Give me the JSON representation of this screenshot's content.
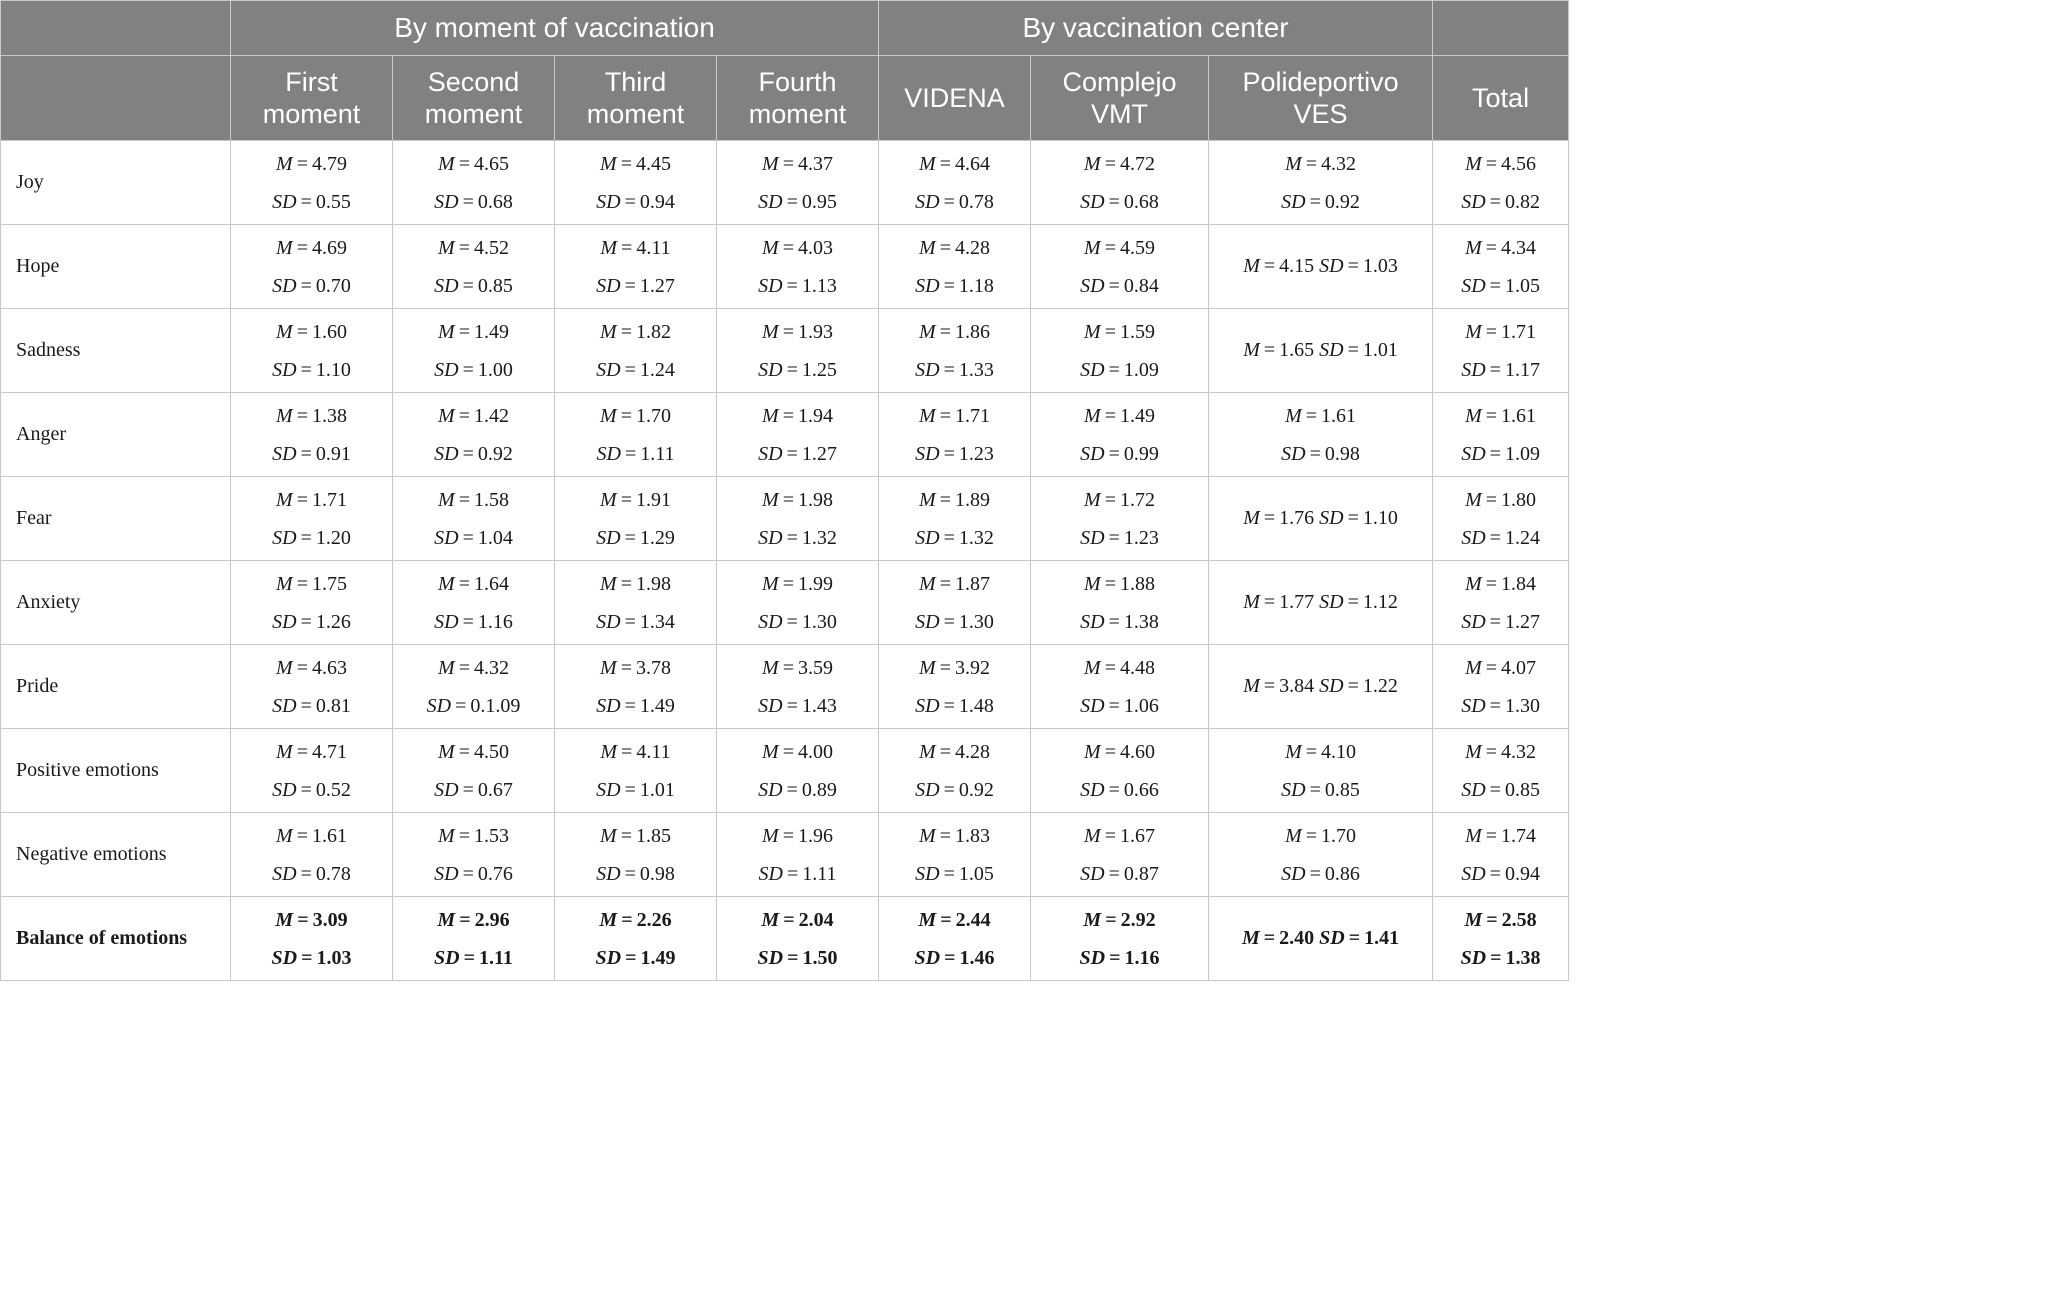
{
  "table": {
    "groups": [
      {
        "label": "",
        "span": 1
      },
      {
        "label": "By moment of vaccination",
        "span": 4
      },
      {
        "label": "By vaccination center",
        "span": 3
      },
      {
        "label": "",
        "span": 1
      }
    ],
    "columns": [
      [],
      [
        "First",
        "moment"
      ],
      [
        "Second",
        "moment"
      ],
      [
        "Third",
        "moment"
      ],
      [
        "Fourth",
        "moment"
      ],
      [
        "VIDENA"
      ],
      [
        "Complejo",
        "VMT"
      ],
      [
        "Polideportivo",
        "VES"
      ],
      [
        "Total"
      ]
    ],
    "rows": [
      {
        "label": "Joy",
        "bold": false,
        "cells": [
          [
            "4.79",
            "0.55"
          ],
          [
            "4.65",
            "0.68"
          ],
          [
            "4.45",
            "0.94"
          ],
          [
            "4.37",
            "0.95"
          ],
          [
            "4.64",
            "0.78"
          ],
          [
            "4.72",
            "0.68"
          ],
          [
            "4.32",
            "0.92"
          ],
          [
            "4.56",
            "0.82"
          ]
        ],
        "inline": [
          false,
          false,
          false,
          false,
          false,
          false,
          false,
          false
        ]
      },
      {
        "label": "Hope",
        "bold": false,
        "cells": [
          [
            "4.69",
            "0.70"
          ],
          [
            "4.52",
            "0.85"
          ],
          [
            "4.11",
            "1.27"
          ],
          [
            "4.03",
            "1.13"
          ],
          [
            "4.28",
            "1.18"
          ],
          [
            "4.59",
            "0.84"
          ],
          [
            "4.15",
            "1.03"
          ],
          [
            "4.34",
            "1.05"
          ]
        ],
        "inline": [
          false,
          false,
          false,
          false,
          false,
          false,
          true,
          false
        ]
      },
      {
        "label": "Sadness",
        "bold": false,
        "cells": [
          [
            "1.60",
            "1.10"
          ],
          [
            "1.49",
            "1.00"
          ],
          [
            "1.82",
            "1.24"
          ],
          [
            "1.93",
            "1.25"
          ],
          [
            "1.86",
            "1.33"
          ],
          [
            "1.59",
            "1.09"
          ],
          [
            "1.65",
            "1.01"
          ],
          [
            "1.71",
            "1.17"
          ]
        ],
        "inline": [
          false,
          false,
          false,
          false,
          false,
          false,
          true,
          false
        ]
      },
      {
        "label": "Anger",
        "bold": false,
        "cells": [
          [
            "1.38",
            "0.91"
          ],
          [
            "1.42",
            "0.92"
          ],
          [
            "1.70",
            "1.11"
          ],
          [
            "1.94",
            "1.27"
          ],
          [
            "1.71",
            "1.23"
          ],
          [
            "1.49",
            "0.99"
          ],
          [
            "1.61",
            "0.98"
          ],
          [
            "1.61",
            "1.09"
          ]
        ],
        "inline": [
          false,
          false,
          false,
          false,
          false,
          false,
          false,
          false
        ]
      },
      {
        "label": "Fear",
        "bold": false,
        "cells": [
          [
            "1.71",
            "1.20"
          ],
          [
            "1.58",
            "1.04"
          ],
          [
            "1.91",
            "1.29"
          ],
          [
            "1.98",
            "1.32"
          ],
          [
            "1.89",
            "1.32"
          ],
          [
            "1.72",
            "1.23"
          ],
          [
            "1.76",
            "1.10"
          ],
          [
            "1.80",
            "1.24"
          ]
        ],
        "inline": [
          false,
          false,
          false,
          false,
          false,
          false,
          true,
          false
        ]
      },
      {
        "label": "Anxiety",
        "bold": false,
        "cells": [
          [
            "1.75",
            "1.26"
          ],
          [
            "1.64",
            "1.16"
          ],
          [
            "1.98",
            "1.34"
          ],
          [
            "1.99",
            "1.30"
          ],
          [
            "1.87",
            "1.30"
          ],
          [
            "1.88",
            "1.38"
          ],
          [
            "1.77",
            "1.12"
          ],
          [
            "1.84",
            "1.27"
          ]
        ],
        "inline": [
          false,
          false,
          false,
          false,
          false,
          false,
          true,
          false
        ]
      },
      {
        "label": "Pride",
        "bold": false,
        "cells": [
          [
            "4.63",
            "0.81"
          ],
          [
            "4.32",
            "0.1.09"
          ],
          [
            "3.78",
            "1.49"
          ],
          [
            "3.59",
            "1.43"
          ],
          [
            "3.92",
            "1.48"
          ],
          [
            "4.48",
            "1.06"
          ],
          [
            "3.84",
            "1.22"
          ],
          [
            "4.07",
            "1.30"
          ]
        ],
        "inline": [
          false,
          false,
          false,
          false,
          false,
          false,
          true,
          false
        ]
      },
      {
        "label": "Positive emotions",
        "bold": false,
        "cells": [
          [
            "4.71",
            "0.52"
          ],
          [
            "4.50",
            "0.67"
          ],
          [
            "4.11",
            "1.01"
          ],
          [
            "4.00",
            "0.89"
          ],
          [
            "4.28",
            "0.92"
          ],
          [
            "4.60",
            "0.66"
          ],
          [
            "4.10",
            "0.85"
          ],
          [
            "4.32",
            "0.85"
          ]
        ],
        "inline": [
          false,
          false,
          false,
          false,
          false,
          false,
          false,
          false
        ]
      },
      {
        "label": "Negative emotions",
        "bold": false,
        "cells": [
          [
            "1.61",
            "0.78"
          ],
          [
            "1.53",
            "0.76"
          ],
          [
            "1.85",
            "0.98"
          ],
          [
            "1.96",
            "1.11"
          ],
          [
            "1.83",
            "1.05"
          ],
          [
            "1.67",
            "0.87"
          ],
          [
            "1.70",
            "0.86"
          ],
          [
            "1.74",
            "0.94"
          ]
        ],
        "inline": [
          false,
          false,
          false,
          false,
          false,
          false,
          false,
          false
        ]
      },
      {
        "label": "Balance of emotions",
        "bold": true,
        "cells": [
          [
            "3.09",
            "1.03"
          ],
          [
            "2.96",
            "1.11"
          ],
          [
            "2.26",
            "1.49"
          ],
          [
            "2.04",
            "1.50"
          ],
          [
            "2.44",
            "1.46"
          ],
          [
            "2.92",
            "1.16"
          ],
          [
            "2.40",
            "1.41"
          ],
          [
            "2.58",
            "1.38"
          ]
        ],
        "inline": [
          false,
          false,
          false,
          false,
          false,
          false,
          true,
          false
        ]
      }
    ]
  }
}
